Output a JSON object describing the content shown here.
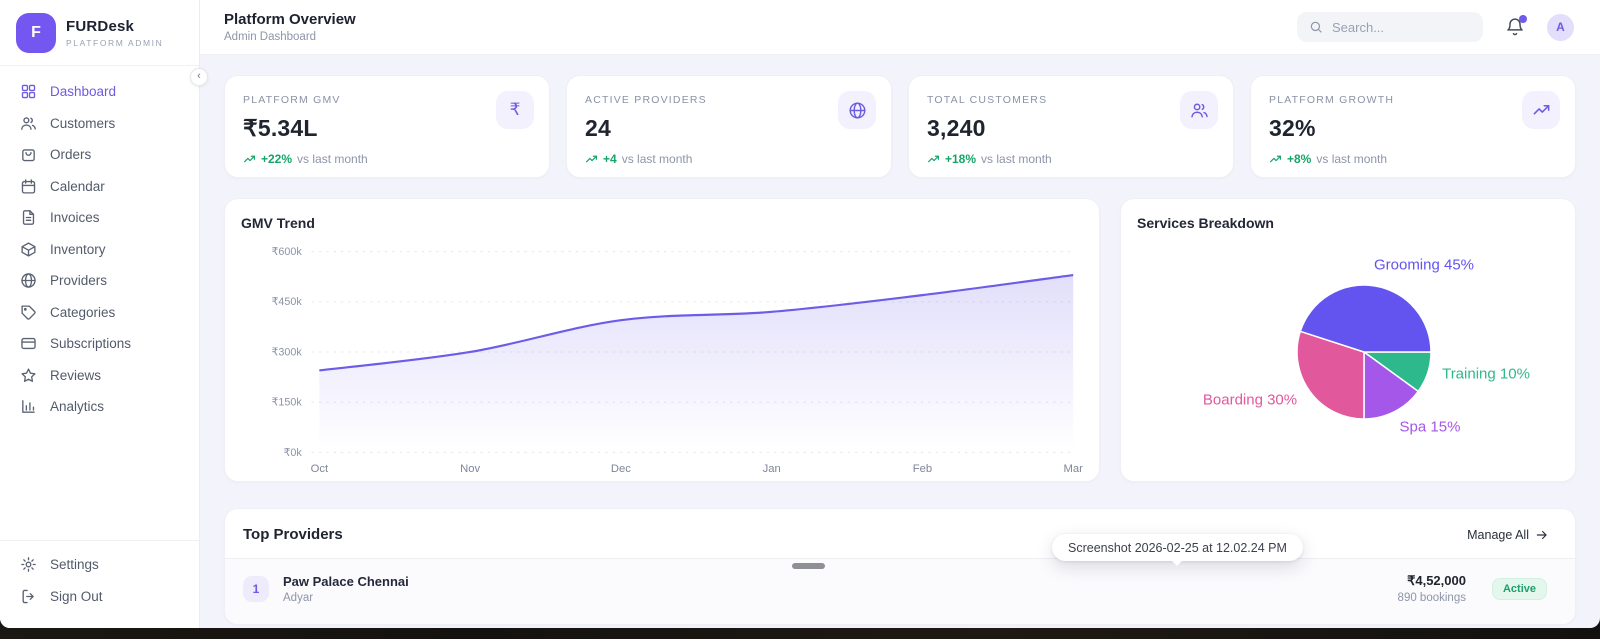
{
  "brand": {
    "initial": "F",
    "name": "FURDesk",
    "tagline": "PLATFORM ADMIN"
  },
  "sidebar": {
    "active_item": "Dashboard",
    "items": [
      {
        "label": "Dashboard"
      },
      {
        "label": "Customers"
      },
      {
        "label": "Orders"
      },
      {
        "label": "Calendar"
      },
      {
        "label": "Invoices"
      },
      {
        "label": "Inventory"
      },
      {
        "label": "Providers"
      },
      {
        "label": "Categories"
      },
      {
        "label": "Subscriptions"
      },
      {
        "label": "Reviews"
      },
      {
        "label": "Analytics"
      }
    ],
    "footer_items": [
      {
        "label": "Settings"
      },
      {
        "label": "Sign Out"
      }
    ]
  },
  "header": {
    "title": "Platform Overview",
    "subtitle": "Admin Dashboard",
    "search_placeholder": "Search...",
    "avatar_initial": "A"
  },
  "stat_cards": [
    {
      "label": "PLATFORM GMV",
      "value": "₹5.34L",
      "delta": "+22%",
      "delta_note": "vs last month",
      "icon": "rupee-icon"
    },
    {
      "label": "ACTIVE PROVIDERS",
      "value": "24",
      "delta": "+4",
      "delta_note": "vs last month",
      "icon": "globe-icon"
    },
    {
      "label": "TOTAL CUSTOMERS",
      "value": "3,240",
      "delta": "+18%",
      "delta_note": "vs last month",
      "icon": "users-icon"
    },
    {
      "label": "PLATFORM GROWTH",
      "value": "32%",
      "delta": "+8%",
      "delta_note": "vs last month",
      "icon": "trending-up-icon"
    }
  ],
  "chart_data": [
    {
      "type": "line",
      "title": "GMV Trend",
      "x": [
        "Oct",
        "Nov",
        "Dec",
        "Jan",
        "Feb",
        "Mar"
      ],
      "series": [
        {
          "name": "GMV",
          "values": [
            245000,
            300000,
            395000,
            420000,
            470000,
            530000
          ]
        }
      ],
      "ylim": [
        0,
        600000
      ],
      "yticks": [
        0,
        150000,
        300000,
        450000,
        600000
      ],
      "ytick_labels": [
        "₹0k",
        "₹150k",
        "₹300k",
        "₹450k",
        "₹600k"
      ],
      "grid": true,
      "legend": "none",
      "line_color": "#6c5ce7",
      "area_fill_top": "rgba(108,92,231,0.20)"
    },
    {
      "type": "pie",
      "title": "Services Breakdown",
      "slices": [
        {
          "label": "Grooming",
          "value": 45,
          "display": "Grooming 45%",
          "color": "#6353ef"
        },
        {
          "label": "Training",
          "value": 10,
          "display": "Training 10%",
          "color": "#2db98c"
        },
        {
          "label": "Spa",
          "value": 15,
          "display": "Spa 15%",
          "color": "#a457e8"
        },
        {
          "label": "Boarding",
          "value": 30,
          "display": "Boarding 30%",
          "color": "#e2589c"
        }
      ],
      "draw_order_clockwise_from_3oclock": [
        "Training",
        "Spa",
        "Boarding",
        "Grooming"
      ]
    }
  ],
  "top_providers": {
    "title": "Top Providers",
    "manage_all_label": "Manage All",
    "rows": [
      {
        "rank": "1",
        "name": "Paw Palace Chennai",
        "location": "Adyar",
        "amount": "₹4,52,000",
        "bookings": "890 bookings",
        "status": "Active"
      }
    ]
  },
  "overlay": {
    "screenshot_label": "Screenshot 2026-02-25 at 12.02.24 PM"
  }
}
